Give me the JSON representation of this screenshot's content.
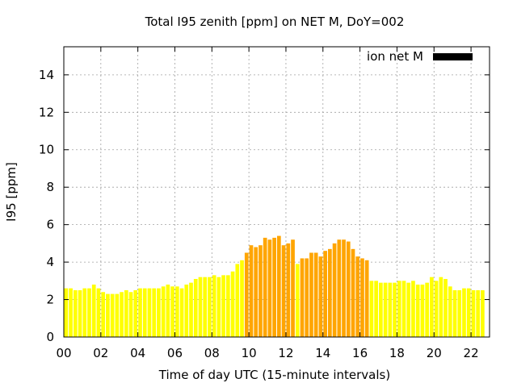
{
  "chart_data": {
    "type": "bar",
    "title": "Total I95 zenith [ppm] on NET M, DoY=002",
    "xlabel": "Time of day UTC (15-minute intervals)",
    "ylabel": "I95 [ppm]",
    "ylim": [
      0,
      15.5
    ],
    "yticks": [
      0,
      2,
      4,
      6,
      8,
      10,
      12,
      14
    ],
    "xlim": [
      0,
      23
    ],
    "xticks": [
      0,
      2,
      4,
      6,
      8,
      10,
      12,
      14,
      16,
      18,
      20,
      22
    ],
    "xtick_labels": [
      "00",
      "02",
      "04",
      "06",
      "08",
      "10",
      "12",
      "14",
      "16",
      "18",
      "20",
      "22"
    ],
    "grid": true,
    "legend": {
      "label": "ion net M",
      "placement": "top-right",
      "color": "#000000"
    },
    "interval_hours": 0.25,
    "colors": {
      "low": "#ffff00",
      "medium": "#ffa500"
    },
    "values": [
      2.6,
      2.6,
      2.5,
      2.5,
      2.6,
      2.6,
      2.8,
      2.6,
      2.4,
      2.3,
      2.3,
      2.3,
      2.4,
      2.5,
      2.4,
      2.5,
      2.6,
      2.6,
      2.6,
      2.6,
      2.6,
      2.7,
      2.8,
      2.7,
      2.7,
      2.6,
      2.8,
      2.9,
      3.1,
      3.2,
      3.2,
      3.2,
      3.3,
      3.2,
      3.3,
      3.3,
      3.5,
      3.9,
      4.1,
      4.5,
      4.9,
      4.8,
      4.9,
      5.3,
      5.2,
      5.3,
      5.4,
      4.9,
      5.0,
      5.2,
      3.9,
      4.2,
      4.2,
      4.5,
      4.5,
      4.3,
      4.6,
      4.7,
      5.0,
      5.2,
      5.2,
      5.1,
      4.7,
      4.3,
      4.2,
      4.1,
      3.0,
      3.0,
      2.9,
      2.9,
      2.9,
      2.9,
      3.0,
      3.0,
      2.9,
      3.0,
      2.8,
      2.8,
      2.9,
      3.2,
      3.0,
      3.2,
      3.1,
      2.7,
      2.5,
      2.5,
      2.6,
      2.6,
      2.5,
      2.5,
      2.5
    ],
    "levels": [
      "low",
      "low",
      "low",
      "low",
      "low",
      "low",
      "low",
      "low",
      "low",
      "low",
      "low",
      "low",
      "low",
      "low",
      "low",
      "low",
      "low",
      "low",
      "low",
      "low",
      "low",
      "low",
      "low",
      "low",
      "low",
      "low",
      "low",
      "low",
      "low",
      "low",
      "low",
      "low",
      "low",
      "low",
      "low",
      "low",
      "low",
      "low",
      "low",
      "medium",
      "medium",
      "medium",
      "medium",
      "medium",
      "medium",
      "medium",
      "medium",
      "medium",
      "medium",
      "medium",
      "low",
      "medium",
      "medium",
      "medium",
      "medium",
      "medium",
      "medium",
      "medium",
      "medium",
      "medium",
      "medium",
      "medium",
      "medium",
      "medium",
      "medium",
      "medium",
      "low",
      "low",
      "low",
      "low",
      "low",
      "low",
      "low",
      "low",
      "low",
      "low",
      "low",
      "low",
      "low",
      "low",
      "low",
      "low",
      "low",
      "low",
      "low",
      "low",
      "low",
      "low",
      "low",
      "low",
      "low"
    ]
  }
}
